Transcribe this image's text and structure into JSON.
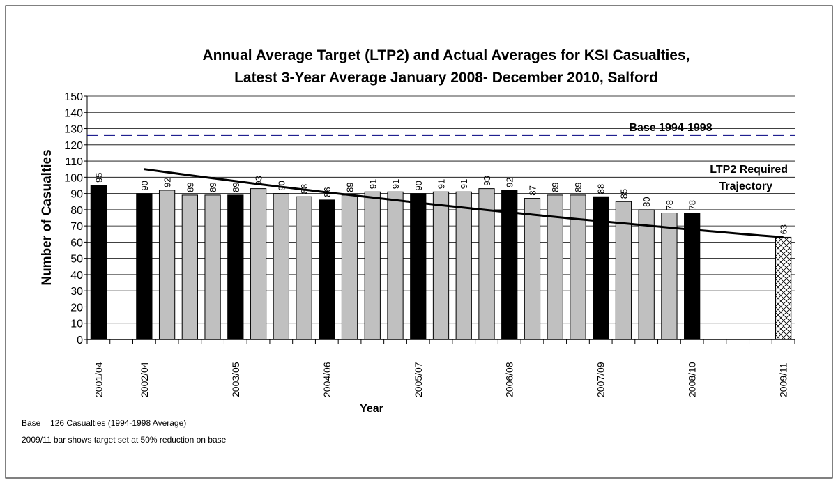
{
  "chart_data": {
    "type": "bar",
    "title": [
      "Annual Average Target (LTP2) and Actual Averages for KSI Casualties,",
      "Latest 3-Year Average January 2008- December 2010, Salford"
    ],
    "x_label": "Year",
    "y_label": "Number of Casualties",
    "categories": [
      "2001/04",
      null,
      "2002/04",
      null,
      null,
      null,
      "2003/05",
      null,
      null,
      null,
      "2004/06",
      null,
      null,
      null,
      "2005/07",
      null,
      null,
      null,
      "2006/08",
      null,
      null,
      null,
      "2007/09",
      null,
      null,
      null,
      "2008/10",
      null,
      null,
      null,
      "2009/11"
    ],
    "values": [
      95,
      null,
      90,
      92,
      89,
      89,
      89,
      93,
      90,
      88,
      86,
      89,
      91,
      91,
      90,
      91,
      91,
      93,
      92,
      87,
      89,
      89,
      88,
      85,
      80,
      78,
      78,
      null,
      null,
      null,
      63
    ],
    "fills": [
      "black",
      null,
      "black",
      "gray",
      "gray",
      "gray",
      "black",
      "gray",
      "gray",
      "gray",
      "black",
      "gray",
      "gray",
      "gray",
      "black",
      "gray",
      "gray",
      "gray",
      "black",
      "gray",
      "gray",
      "gray",
      "black",
      "gray",
      "gray",
      "gray",
      "black",
      null,
      null,
      null,
      "hatch"
    ],
    "colors": {
      "black": "#000000",
      "gray": "#c0c0c0",
      "hatch": "#ffffff"
    },
    "series": [
      {
        "name": "LTP2 Required Trajectory",
        "label": [
          "LTP2 Required",
          "Trajectory"
        ],
        "color": "#000000",
        "type": "line",
        "values": [
          null,
          null,
          105,
          103.1,
          101.2,
          99.4,
          97.6,
          95.8,
          94.1,
          92.4,
          90.7,
          89.1,
          87.5,
          85.9,
          84.3,
          82.8,
          81.3,
          79.8,
          78.4,
          77.0,
          75.6,
          74.2,
          72.9,
          71.6,
          70.3,
          69.0,
          67.7,
          66.5,
          65.3,
          64.1,
          63
        ]
      }
    ],
    "reference_lines": [
      {
        "value": 126,
        "label": "Base 1994-1998",
        "color": "#000080",
        "style": "dashed"
      }
    ],
    "ylim": [
      0,
      150
    ],
    "yticks": [
      0,
      10,
      20,
      30,
      40,
      50,
      60,
      70,
      80,
      90,
      100,
      110,
      120,
      130,
      140,
      150
    ],
    "grid": true,
    "notes": [
      "Base = 126 Casualties (1994-1998 Average)",
      "2009/11 bar shows target set at 50% reduction on base"
    ]
  }
}
